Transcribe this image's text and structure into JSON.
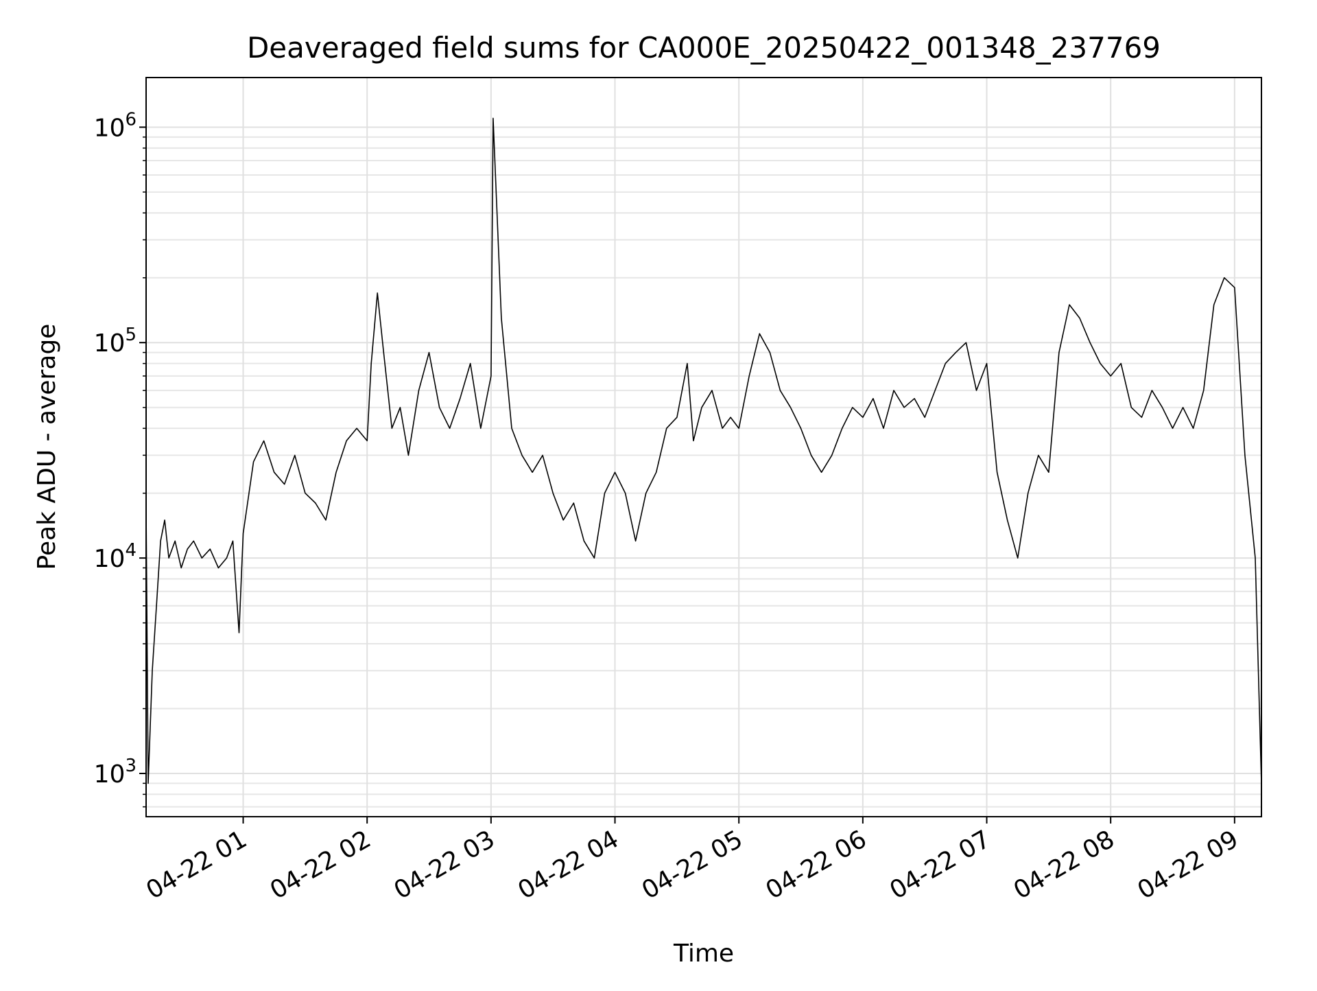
{
  "chart_data": {
    "type": "line",
    "title": "Deaveraged field sums for CA000E_20250422_001348_237769",
    "xlabel": "Time",
    "ylabel": "Peak ADU - average",
    "yscale": "log",
    "ylim": [
      630,
      1700000
    ],
    "xlim": [
      "2025-04-22 00:13",
      "2025-04-22 09:13"
    ],
    "grid": true,
    "line_color": "#000000",
    "x_ticks": [
      {
        "label": "04-22 01",
        "value": "2025-04-22 01:00"
      },
      {
        "label": "04-22 02",
        "value": "2025-04-22 02:00"
      },
      {
        "label": "04-22 03",
        "value": "2025-04-22 03:00"
      },
      {
        "label": "04-22 04",
        "value": "2025-04-22 04:00"
      },
      {
        "label": "04-22 05",
        "value": "2025-04-22 05:00"
      },
      {
        "label": "04-22 06",
        "value": "2025-04-22 06:00"
      },
      {
        "label": "04-22 07",
        "value": "2025-04-22 07:00"
      },
      {
        "label": "04-22 08",
        "value": "2025-04-22 08:00"
      },
      {
        "label": "04-22 09",
        "value": "2025-04-22 09:00"
      }
    ],
    "y_ticks": [
      {
        "base": "10",
        "exp": "3",
        "value": 1000
      },
      {
        "base": "10",
        "exp": "4",
        "value": 10000
      },
      {
        "base": "10",
        "exp": "5",
        "value": 100000
      },
      {
        "base": "10",
        "exp": "6",
        "value": 1000000
      }
    ],
    "series": [
      {
        "x": [
          "2025-04-22 00:13",
          "2025-04-22 00:14",
          "2025-04-22 00:16",
          "2025-04-22 00:18",
          "2025-04-22 00:20",
          "2025-04-22 00:22",
          "2025-04-22 00:24",
          "2025-04-22 00:27",
          "2025-04-22 00:30",
          "2025-04-22 00:33",
          "2025-04-22 00:36",
          "2025-04-22 00:40",
          "2025-04-22 00:44",
          "2025-04-22 00:48",
          "2025-04-22 00:52",
          "2025-04-22 00:55",
          "2025-04-22 00:58",
          "2025-04-22 01:00",
          "2025-04-22 01:05",
          "2025-04-22 01:10",
          "2025-04-22 01:15",
          "2025-04-22 01:20",
          "2025-04-22 01:25",
          "2025-04-22 01:30",
          "2025-04-22 01:35",
          "2025-04-22 01:40",
          "2025-04-22 01:45",
          "2025-04-22 01:50",
          "2025-04-22 01:55",
          "2025-04-22 02:00",
          "2025-04-22 02:02",
          "2025-04-22 02:05",
          "2025-04-22 02:08",
          "2025-04-22 02:12",
          "2025-04-22 02:16",
          "2025-04-22 02:20",
          "2025-04-22 02:25",
          "2025-04-22 02:30",
          "2025-04-22 02:35",
          "2025-04-22 02:40",
          "2025-04-22 02:45",
          "2025-04-22 02:50",
          "2025-04-22 02:55",
          "2025-04-22 03:00",
          "2025-04-22 03:01",
          "2025-04-22 03:05",
          "2025-04-22 03:10",
          "2025-04-22 03:15",
          "2025-04-22 03:20",
          "2025-04-22 03:25",
          "2025-04-22 03:30",
          "2025-04-22 03:35",
          "2025-04-22 03:40",
          "2025-04-22 03:45",
          "2025-04-22 03:50",
          "2025-04-22 03:55",
          "2025-04-22 04:00",
          "2025-04-22 04:05",
          "2025-04-22 04:10",
          "2025-04-22 04:15",
          "2025-04-22 04:20",
          "2025-04-22 04:25",
          "2025-04-22 04:30",
          "2025-04-22 04:35",
          "2025-04-22 04:38",
          "2025-04-22 04:42",
          "2025-04-22 04:47",
          "2025-04-22 04:52",
          "2025-04-22 04:56",
          "2025-04-22 05:00",
          "2025-04-22 05:05",
          "2025-04-22 05:10",
          "2025-04-22 05:15",
          "2025-04-22 05:20",
          "2025-04-22 05:25",
          "2025-04-22 05:30",
          "2025-04-22 05:35",
          "2025-04-22 05:40",
          "2025-04-22 05:45",
          "2025-04-22 05:50",
          "2025-04-22 05:55",
          "2025-04-22 06:00",
          "2025-04-22 06:05",
          "2025-04-22 06:10",
          "2025-04-22 06:15",
          "2025-04-22 06:20",
          "2025-04-22 06:25",
          "2025-04-22 06:30",
          "2025-04-22 06:35",
          "2025-04-22 06:40",
          "2025-04-22 06:45",
          "2025-04-22 06:50",
          "2025-04-22 06:55",
          "2025-04-22 07:00",
          "2025-04-22 07:05",
          "2025-04-22 07:10",
          "2025-04-22 07:15",
          "2025-04-22 07:20",
          "2025-04-22 07:25",
          "2025-04-22 07:30",
          "2025-04-22 07:35",
          "2025-04-22 07:40",
          "2025-04-22 07:45",
          "2025-04-22 07:50",
          "2025-04-22 07:55",
          "2025-04-22 08:00",
          "2025-04-22 08:05",
          "2025-04-22 08:10",
          "2025-04-22 08:15",
          "2025-04-22 08:20",
          "2025-04-22 08:25",
          "2025-04-22 08:30",
          "2025-04-22 08:35",
          "2025-04-22 08:40",
          "2025-04-22 08:45",
          "2025-04-22 08:50",
          "2025-04-22 08:55",
          "2025-04-22 09:00",
          "2025-04-22 09:05",
          "2025-04-22 09:10",
          "2025-04-22 09:13"
        ],
        "y": [
          17000,
          900,
          3000,
          6000,
          12000,
          15000,
          10000,
          12000,
          9000,
          11000,
          12000,
          10000,
          11000,
          9000,
          10000,
          12000,
          4500,
          13000,
          28000,
          35000,
          25000,
          22000,
          30000,
          20000,
          18000,
          15000,
          25000,
          35000,
          40000,
          35000,
          80000,
          170000,
          90000,
          40000,
          50000,
          30000,
          60000,
          90000,
          50000,
          40000,
          55000,
          80000,
          40000,
          70000,
          1100000,
          130000,
          40000,
          30000,
          25000,
          30000,
          20000,
          15000,
          18000,
          12000,
          10000,
          20000,
          25000,
          20000,
          12000,
          20000,
          25000,
          40000,
          45000,
          80000,
          35000,
          50000,
          60000,
          40000,
          45000,
          40000,
          70000,
          110000,
          90000,
          60000,
          50000,
          40000,
          30000,
          25000,
          30000,
          40000,
          50000,
          45000,
          55000,
          40000,
          60000,
          50000,
          55000,
          45000,
          60000,
          80000,
          90000,
          100000,
          60000,
          80000,
          25000,
          15000,
          10000,
          20000,
          30000,
          25000,
          90000,
          150000,
          130000,
          100000,
          80000,
          70000,
          80000,
          50000,
          45000,
          60000,
          50000,
          40000,
          50000,
          40000,
          60000,
          150000,
          200000,
          180000,
          30000,
          10000,
          900
        ]
      }
    ]
  }
}
